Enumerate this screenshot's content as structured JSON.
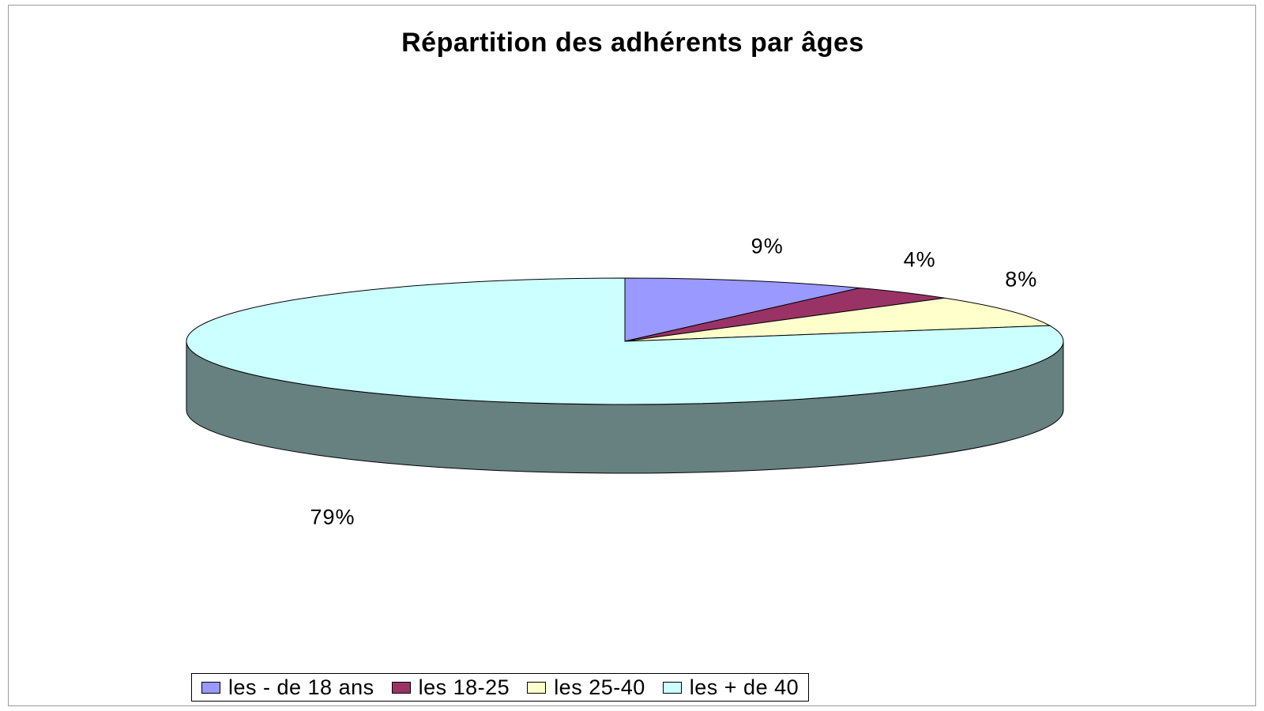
{
  "chart_data": {
    "type": "pie",
    "style": "3d",
    "title": "Répartition des adhérents par âges",
    "categories": [
      "les - de 18 ans",
      "les 18-25",
      "les 25-40",
      "les + de 40"
    ],
    "values": [
      9,
      4,
      8,
      79
    ],
    "value_labels": [
      "9%",
      "4%",
      "8%",
      "79%"
    ],
    "colors": [
      "#9999ff",
      "#993366",
      "#ffffcc",
      "#ccffff"
    ],
    "side_color": "#678080",
    "legend_position": "bottom"
  }
}
